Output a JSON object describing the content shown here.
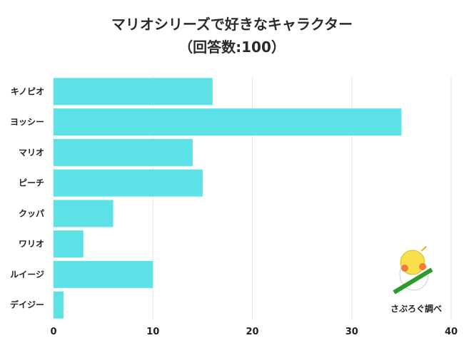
{
  "chart_data": {
    "type": "bar",
    "orientation": "horizontal",
    "title": "マリオシリーズで好きなキャラクター",
    "subtitle": "（回答数:100）",
    "categories": [
      "キノピオ",
      "ヨッシー",
      "マリオ",
      "ピーチ",
      "クッパ",
      "ワリオ",
      "ルイージ",
      "デイジー"
    ],
    "values": [
      16,
      35,
      14,
      15,
      6,
      3,
      10,
      1
    ],
    "xlim": [
      0,
      40
    ],
    "xticks": [
      0,
      10,
      20,
      30,
      40
    ],
    "grid": true,
    "bar_color": "#5ce1e6"
  },
  "logo": {
    "text": "さぶろぐ調べ"
  }
}
